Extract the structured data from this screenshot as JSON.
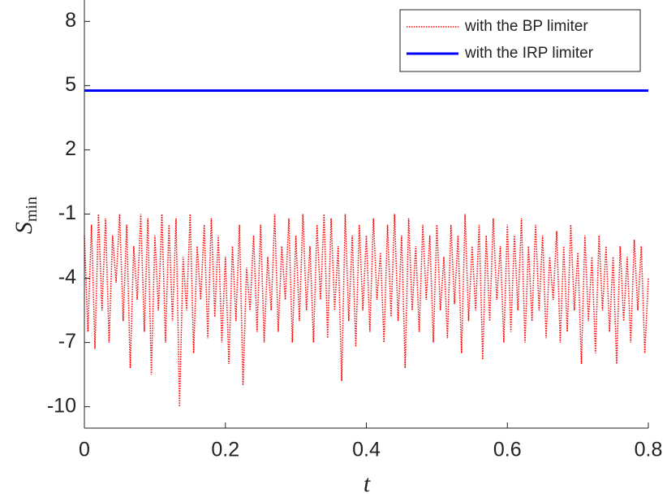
{
  "chart_data": {
    "type": "line",
    "xlabel": "t",
    "ylabel": "S",
    "ylabel_sub": "min",
    "xlim": [
      0,
      0.8
    ],
    "xticks": [
      0,
      0.2,
      0.4,
      0.6,
      0.8
    ],
    "ylim": [
      -11,
      9
    ],
    "yticks": [
      -10,
      -7,
      -4,
      -1,
      2,
      5,
      8
    ],
    "legend": "upper right",
    "series": [
      {
        "name": "with the BP limiter",
        "color": "#ff0000",
        "dash": "dotted",
        "x": [
          0,
          0.005,
          0.01,
          0.015,
          0.02,
          0.025,
          0.03,
          0.035,
          0.04,
          0.045,
          0.05,
          0.055,
          0.06,
          0.065,
          0.07,
          0.075,
          0.08,
          0.085,
          0.09,
          0.095,
          0.1,
          0.105,
          0.11,
          0.115,
          0.12,
          0.125,
          0.13,
          0.135,
          0.14,
          0.145,
          0.15,
          0.155,
          0.16,
          0.165,
          0.17,
          0.175,
          0.18,
          0.185,
          0.19,
          0.195,
          0.2,
          0.205,
          0.21,
          0.215,
          0.22,
          0.225,
          0.23,
          0.235,
          0.24,
          0.245,
          0.25,
          0.255,
          0.26,
          0.265,
          0.27,
          0.275,
          0.28,
          0.285,
          0.29,
          0.295,
          0.3,
          0.305,
          0.31,
          0.315,
          0.32,
          0.325,
          0.33,
          0.335,
          0.34,
          0.345,
          0.35,
          0.355,
          0.36,
          0.365,
          0.37,
          0.375,
          0.38,
          0.385,
          0.39,
          0.395,
          0.4,
          0.405,
          0.41,
          0.415,
          0.42,
          0.425,
          0.43,
          0.435,
          0.44,
          0.445,
          0.45,
          0.455,
          0.46,
          0.465,
          0.47,
          0.475,
          0.48,
          0.485,
          0.49,
          0.495,
          0.5,
          0.505,
          0.51,
          0.515,
          0.52,
          0.525,
          0.53,
          0.535,
          0.54,
          0.545,
          0.55,
          0.555,
          0.56,
          0.565,
          0.57,
          0.575,
          0.58,
          0.585,
          0.59,
          0.595,
          0.6,
          0.605,
          0.61,
          0.615,
          0.62,
          0.625,
          0.63,
          0.635,
          0.64,
          0.645,
          0.65,
          0.655,
          0.66,
          0.665,
          0.67,
          0.675,
          0.68,
          0.685,
          0.69,
          0.695,
          0.7,
          0.705,
          0.71,
          0.715,
          0.72,
          0.725,
          0.73,
          0.735,
          0.74,
          0.745,
          0.75,
          0.755,
          0.76,
          0.765,
          0.77,
          0.775,
          0.78,
          0.785,
          0.79,
          0.795,
          0.8
        ],
        "values": [
          -2.0,
          -6.5,
          -1.5,
          -7.3,
          -1.0,
          -5.5,
          -1.2,
          -7.0,
          -2.0,
          -4.2,
          -1.0,
          -6.0,
          -1.5,
          -8.2,
          -2.5,
          -5.0,
          -1.0,
          -6.5,
          -1.2,
          -8.5,
          -2.0,
          -5.5,
          -1.0,
          -7.0,
          -1.5,
          -6.0,
          -1.2,
          -10.0,
          -3.0,
          -5.5,
          -1.0,
          -7.5,
          -2.5,
          -5.0,
          -1.5,
          -6.8,
          -1.2,
          -5.8,
          -2.0,
          -7.0,
          -3.0,
          -8.0,
          -2.5,
          -6.0,
          -1.5,
          -9.0,
          -3.5,
          -5.5,
          -2.0,
          -6.5,
          -1.5,
          -7.0,
          -3.0,
          -5.5,
          -1.0,
          -6.5,
          -2.5,
          -5.0,
          -1.2,
          -7.0,
          -2.0,
          -6.0,
          -1.0,
          -5.5,
          -2.5,
          -7.0,
          -1.5,
          -5.0,
          -1.0,
          -6.8,
          -1.2,
          -5.5,
          -2.5,
          -8.8,
          -1.0,
          -6.0,
          -2.0,
          -7.2,
          -1.5,
          -5.5,
          -2.0,
          -6.5,
          -1.2,
          -5.0,
          -2.8,
          -7.0,
          -1.5,
          -5.8,
          -1.0,
          -6.0,
          -2.0,
          -8.2,
          -1.2,
          -5.5,
          -2.5,
          -6.5,
          -1.5,
          -5.0,
          -2.0,
          -7.0,
          -1.5,
          -5.5,
          -3.0,
          -6.8,
          -1.5,
          -5.2,
          -2.0,
          -7.5,
          -1.0,
          -6.0,
          -2.5,
          -5.5,
          -1.5,
          -7.8,
          -2.0,
          -6.0,
          -1.2,
          -5.0,
          -2.5,
          -7.0,
          -1.5,
          -6.5,
          -2.0,
          -5.5,
          -1.2,
          -7.0,
          -2.5,
          -6.0,
          -1.5,
          -5.5,
          -2.0,
          -6.8,
          -3.0,
          -5.0,
          -1.8,
          -7.0,
          -2.5,
          -6.5,
          -1.5,
          -5.5,
          -2.8,
          -8.0,
          -2.0,
          -6.0,
          -3.0,
          -7.5,
          -2.0,
          -5.5,
          -2.5,
          -6.5,
          -3.0,
          -8.0,
          -2.5,
          -6.0,
          -3.0,
          -7.0,
          -2.2,
          -5.5,
          -2.5,
          -7.5,
          -4.0
        ]
      },
      {
        "name": "with the IRP limiter",
        "color": "#0000ff",
        "dash": "solid",
        "x": [
          0,
          0.8
        ],
        "values": [
          4.77,
          4.77
        ]
      }
    ]
  }
}
